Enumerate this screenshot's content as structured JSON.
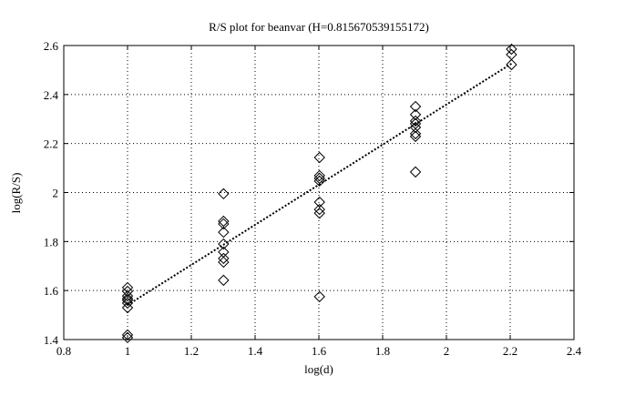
{
  "chart_data": {
    "type": "scatter",
    "title": "R/S plot for beanvar (H=0.815670539155172)",
    "x_label": "log(d)",
    "y_label": "log(R/S)",
    "xlim": [
      0.8,
      2.4
    ],
    "xticks": [
      0.8,
      1,
      1.2,
      1.4,
      1.6,
      1.8,
      2,
      2.2,
      2.4
    ],
    "ylim": [
      1.4,
      2.6
    ],
    "yticks": [
      1.4,
      1.6,
      1.8,
      2,
      2.2,
      2.4,
      2.6
    ],
    "grid": true,
    "series": [
      {
        "type": "scatter",
        "color": "#000000",
        "x": [
          1,
          1,
          1,
          1,
          1,
          1,
          1,
          1,
          1,
          1.301,
          1.301,
          1.301,
          1.301,
          1.301,
          1.301,
          1.301,
          1.301,
          1.301,
          1.602,
          1.602,
          1.602,
          1.602,
          1.602,
          1.602,
          1.602,
          1.602,
          1.903,
          1.903,
          1.903,
          1.903,
          1.903,
          1.903,
          1.903,
          1.903,
          2.204,
          2.204,
          2.204
        ],
        "values": [
          1.612,
          1.597,
          1.578,
          1.567,
          1.56,
          1.549,
          1.53,
          1.419,
          1.408,
          1.995,
          1.883,
          1.872,
          1.838,
          1.79,
          1.757,
          1.731,
          1.716,
          1.642,
          2.143,
          2.069,
          2.058,
          2.047,
          1.961,
          1.931,
          1.916,
          1.575,
          2.351,
          2.318,
          2.292,
          2.281,
          2.266,
          2.24,
          2.229,
          2.084,
          2.585,
          2.563,
          2.522
        ]
      },
      {
        "type": "line",
        "color": "#000000",
        "x": [
          1,
          2.204
        ],
        "values": [
          1.541,
          2.526
        ]
      }
    ]
  }
}
